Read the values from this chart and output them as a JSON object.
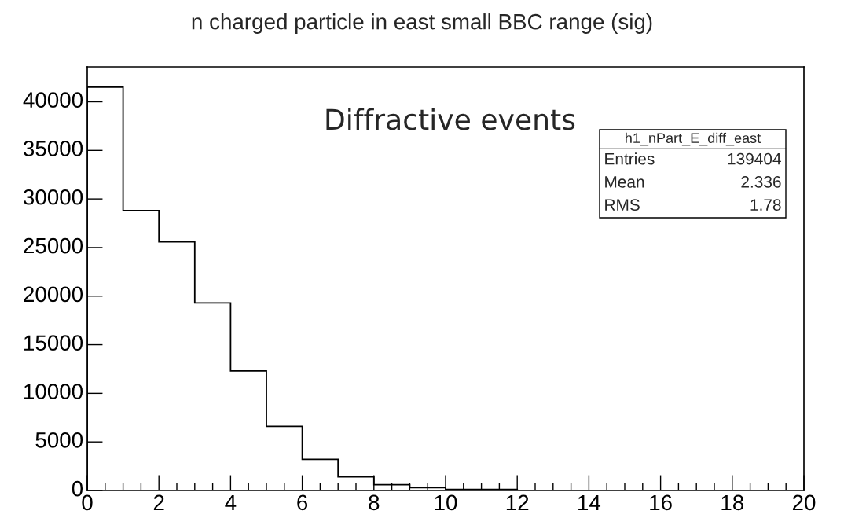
{
  "chart_data": {
    "type": "histogram",
    "title": "n charged particle in east small BBC range (sig)",
    "bins": [
      0,
      1,
      2,
      3,
      4,
      5,
      6,
      7,
      8,
      9,
      10,
      11,
      12,
      13,
      14,
      15,
      16,
      17,
      18,
      19,
      20
    ],
    "values": [
      41500,
      28800,
      25600,
      19300,
      12300,
      6600,
      3200,
      1400,
      600,
      300,
      100,
      100,
      0,
      0,
      0,
      0,
      0,
      0,
      0,
      0
    ],
    "color": "#000000",
    "xlim": [
      0,
      20
    ],
    "xticks": [
      0,
      2,
      4,
      6,
      8,
      10,
      12,
      14,
      16,
      18,
      20
    ],
    "ylim": [
      0,
      43600
    ],
    "yticks": [
      0,
      5000,
      10000,
      15000,
      20000,
      25000,
      30000,
      35000,
      40000
    ],
    "grid": false,
    "legend": false,
    "annotations": [
      "Diffractive events",
      "h1_nPart_E_diff_east",
      "Entries",
      "139404",
      "Mean",
      "2.336",
      "RMS",
      "1.78"
    ]
  }
}
